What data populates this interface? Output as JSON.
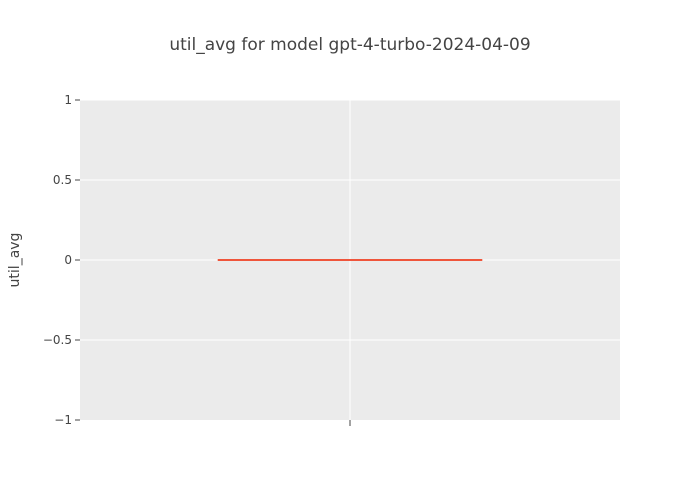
{
  "chart_data": {
    "type": "box",
    "title": "util_avg for model gpt-4-turbo-2024-04-09",
    "xlabel": "",
    "ylabel": "util_avg",
    "ylim": [
      -1,
      1
    ],
    "yticks": [
      1,
      0.5,
      0,
      -0.5,
      -1
    ],
    "ytick_labels": [
      "1",
      "0.5",
      "0",
      "−0.5",
      "−1"
    ],
    "grid": true,
    "series": [
      {
        "values": [
          0
        ],
        "q1": 0,
        "median": 0,
        "q3": 0,
        "min": 0,
        "max": 0,
        "color": "#ef553b"
      }
    ]
  },
  "colors": {
    "plot_background": "#ebebeb",
    "grid": "#ffffff",
    "text": "#444444",
    "box": "#ef553b"
  }
}
